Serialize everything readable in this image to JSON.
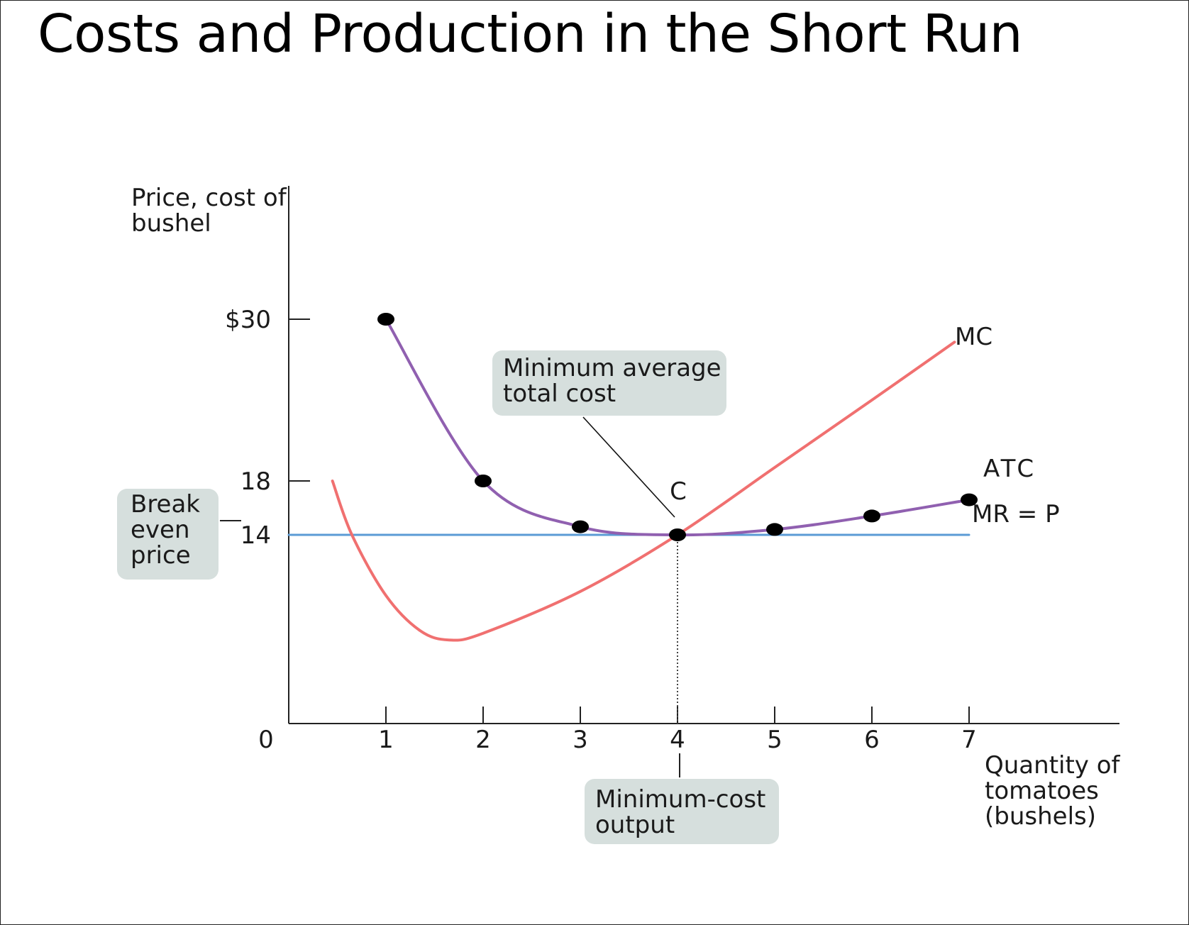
{
  "page": {
    "title": "Costs and Production in the Short Run"
  },
  "chart_data": {
    "type": "line",
    "ylabel": [
      "Price, cost of",
      "bushel"
    ],
    "xlabel": [
      "Quantity of",
      "tomatoes",
      "(bushels)"
    ],
    "origin_label": "0",
    "x_ticks": [
      1,
      2,
      3,
      4,
      5,
      6,
      7
    ],
    "y_ticks": [
      {
        "value": 30,
        "label": "$30"
      },
      {
        "value": 18,
        "label": "18"
      },
      {
        "value": 14,
        "label": "14"
      }
    ],
    "xlim": [
      0,
      7
    ],
    "ylim": [
      0,
      30
    ],
    "series": [
      {
        "name": "ATC",
        "color": "#9060b0",
        "markers": true,
        "values": [
          {
            "x": 1,
            "y": 30
          },
          {
            "x": 2,
            "y": 18
          },
          {
            "x": 3,
            "y": 14.6
          },
          {
            "x": 4,
            "y": 14
          },
          {
            "x": 5,
            "y": 14.4
          },
          {
            "x": 6,
            "y": 15.4
          },
          {
            "x": 7,
            "y": 16.6
          }
        ]
      },
      {
        "name": "MC",
        "color": "#f07070",
        "markers": false,
        "values": [
          {
            "x": 0.45,
            "y": 18
          },
          {
            "x": 0.65,
            "y": 14
          },
          {
            "x": 1.0,
            "y": 9.5
          },
          {
            "x": 1.35,
            "y": 6.9
          },
          {
            "x": 1.65,
            "y": 6.2
          },
          {
            "x": 2.0,
            "y": 6.7
          },
          {
            "x": 3.0,
            "y": 9.8
          },
          {
            "x": 4.0,
            "y": 14
          },
          {
            "x": 5.0,
            "y": 19
          },
          {
            "x": 6.0,
            "y": 24
          },
          {
            "x": 6.85,
            "y": 28.3
          }
        ]
      },
      {
        "name": "MR = P",
        "color": "#5b9bd5",
        "markers": false,
        "values": [
          {
            "x": 0,
            "y": 14
          },
          {
            "x": 7,
            "y": 14
          }
        ]
      }
    ],
    "point_label": {
      "text": "C",
      "x": 4,
      "y": 14
    },
    "annotations": {
      "min_atc": [
        "Minimum average",
        "total cost"
      ],
      "break_even": [
        "Break",
        "even",
        "price"
      ],
      "min_cost_output": [
        "Minimum-cost",
        "output"
      ]
    },
    "grid": false
  }
}
